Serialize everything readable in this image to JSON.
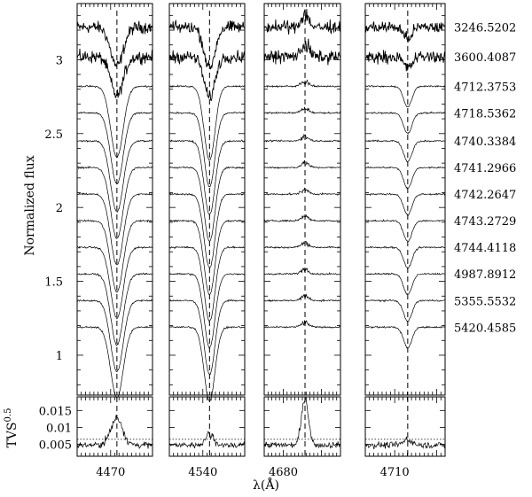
{
  "chart_data": {
    "type": "line",
    "ylabel": "Normalized flux",
    "xlabel": "λ(Å)",
    "tvs_ylabel": "TVS",
    "tvs_ylabel_sup": "0.5",
    "y_ticks": [
      1,
      1.5,
      2,
      2.5,
      3
    ],
    "y_range": [
      0.73,
      3.38
    ],
    "tvs_ticks": [
      0.005,
      0.01,
      0.015
    ],
    "tvs_range": [
      0.0015,
      0.019
    ],
    "tvs_threshold": 0.0065,
    "epochs": [
      "3246.5202",
      "3600.4087",
      "4712.3753",
      "4718.5362",
      "4740.3384",
      "4741.2966",
      "4742.2647",
      "4743.2729",
      "4744.4118",
      "4987.8912",
      "5355.5532",
      "5420.4585"
    ],
    "offsets": [
      3.22,
      3.02,
      2.82,
      2.64,
      2.45,
      2.27,
      2.09,
      1.91,
      1.73,
      1.55,
      1.37,
      1.19
    ],
    "noisy_epochs": [
      0,
      1
    ],
    "panels": [
      {
        "center": 4471.5,
        "xmin": 4462,
        "xmax": 4480,
        "tick_label": "4470",
        "tick_value": 4470,
        "line": "absorption",
        "depth": 0.48,
        "width": 1.5,
        "line_profile": "profile_a",
        "tvs_peak": 0.0125,
        "tvs_width": 1.4
      },
      {
        "center": 4541.6,
        "xmin": 4532,
        "xmax": 4550,
        "tick_label": "4540",
        "tick_value": 4540,
        "line": "absorption",
        "depth": 0.5,
        "width": 1.3,
        "line_profile": "profile_a",
        "tvs_peak": 0.0078,
        "tvs_width": 1.0
      },
      {
        "center": 4685.7,
        "xmin": 4675,
        "xmax": 4695,
        "tick_label": "4680",
        "tick_value": 4680,
        "line": "weak",
        "depth": 0.03,
        "width": 1.0,
        "line_profile": "profile_b",
        "tvs_peak": 0.0185,
        "tvs_width": 0.9
      },
      {
        "center": 4713.1,
        "xmin": 4703,
        "xmax": 4722,
        "tick_label": "4710",
        "tick_value": 4710,
        "line": "absorption",
        "depth": 0.14,
        "width": 1.0,
        "line_profile": "profile_c",
        "tvs_peak": 0.0062,
        "tvs_width": 1.0
      }
    ]
  }
}
